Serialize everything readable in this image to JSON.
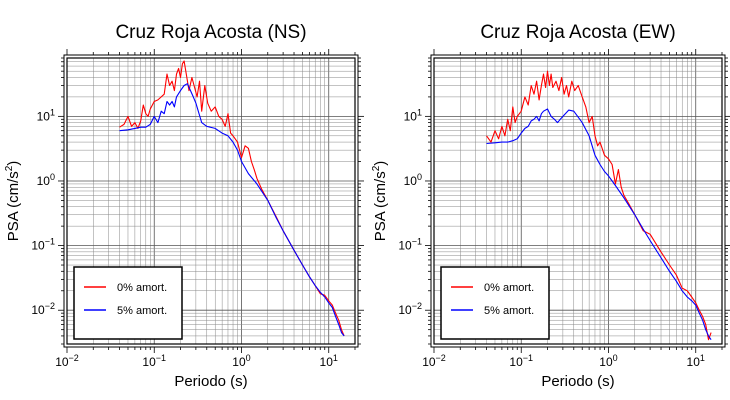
{
  "chart_data": [
    {
      "type": "line",
      "title": "Cruz Roja Acosta (NS)",
      "xlabel": "Periodo (s)",
      "ylabel": "PSA (cm/s²)",
      "xscale": "log",
      "yscale": "log",
      "xlim": [
        0.01,
        20
      ],
      "ylim": [
        0.003,
        80
      ],
      "grid": true,
      "legend_position": "bottom-left",
      "x_ticks": [
        {
          "value": 0.01,
          "base": "10",
          "exp": "−2"
        },
        {
          "value": 0.1,
          "base": "10",
          "exp": "−1"
        },
        {
          "value": 1,
          "base": "10",
          "exp": "0"
        },
        {
          "value": 10,
          "base": "10",
          "exp": "1"
        }
      ],
      "y_ticks": [
        {
          "value": 0.01,
          "base": "10",
          "exp": "−2"
        },
        {
          "value": 0.1,
          "base": "10",
          "exp": "−1"
        },
        {
          "value": 1,
          "base": "10",
          "exp": "0"
        },
        {
          "value": 10,
          "base": "10",
          "exp": "1"
        }
      ],
      "series": [
        {
          "name": "0% amort.",
          "color": "#ff0000",
          "x": [
            0.04,
            0.045,
            0.05,
            0.055,
            0.06,
            0.065,
            0.07,
            0.075,
            0.08,
            0.085,
            0.09,
            0.1,
            0.11,
            0.12,
            0.13,
            0.14,
            0.15,
            0.16,
            0.17,
            0.18,
            0.19,
            0.2,
            0.21,
            0.22,
            0.23,
            0.25,
            0.27,
            0.29,
            0.31,
            0.33,
            0.35,
            0.38,
            0.41,
            0.45,
            0.5,
            0.55,
            0.6,
            0.65,
            0.7,
            0.75,
            0.8,
            0.9,
            1.0,
            1.1,
            1.2,
            1.3,
            1.4,
            1.5,
            1.7,
            2.0,
            2.5,
            3.0,
            4.0,
            5.0,
            6.0,
            7.0,
            8.0,
            9.0,
            10.0,
            11.0,
            12.0,
            13.0,
            14.0,
            15.0
          ],
          "y": [
            6.8,
            7.5,
            10,
            7,
            8,
            6.5,
            8.5,
            15,
            11,
            10,
            13,
            17,
            18,
            20,
            22,
            45,
            30,
            35,
            25,
            45,
            55,
            40,
            65,
            72,
            50,
            25,
            40,
            28,
            20,
            35,
            12,
            30,
            16,
            12,
            14,
            10,
            9,
            7,
            11,
            5.5,
            5,
            4,
            2.3,
            3.5,
            3.2,
            2.0,
            1.5,
            1.1,
            0.75,
            0.5,
            0.28,
            0.17,
            0.085,
            0.05,
            0.033,
            0.024,
            0.018,
            0.017,
            0.014,
            0.012,
            0.009,
            0.007,
            0.005,
            0.004
          ]
        },
        {
          "name": "5% amort.",
          "color": "#0000ff",
          "x": [
            0.04,
            0.05,
            0.06,
            0.07,
            0.08,
            0.09,
            0.1,
            0.11,
            0.12,
            0.13,
            0.14,
            0.15,
            0.16,
            0.17,
            0.18,
            0.2,
            0.22,
            0.24,
            0.26,
            0.28,
            0.3,
            0.35,
            0.4,
            0.5,
            0.6,
            0.7,
            0.8,
            0.9,
            1.0,
            1.2,
            1.5,
            2.0,
            2.5,
            3.0,
            4.0,
            5.0,
            6.0,
            7.0,
            8.0,
            9.0,
            10.0,
            11.0,
            12.0,
            13.0,
            14.0,
            15.0
          ],
          "y": [
            6.0,
            6.2,
            6.5,
            6.8,
            6.8,
            7.5,
            10,
            8,
            12,
            11,
            17,
            15,
            17,
            14,
            20,
            25,
            30,
            32,
            25,
            20,
            16,
            8,
            7,
            6.5,
            5.5,
            5,
            4,
            3,
            2,
            1.3,
            0.9,
            0.5,
            0.27,
            0.17,
            0.085,
            0.05,
            0.033,
            0.024,
            0.019,
            0.016,
            0.013,
            0.011,
            0.008,
            0.006,
            0.0045,
            0.004
          ]
        }
      ]
    },
    {
      "type": "line",
      "title": "Cruz Roja Acosta (EW)",
      "xlabel": "Periodo (s)",
      "ylabel": "PSA (cm/s²)",
      "xscale": "log",
      "yscale": "log",
      "xlim": [
        0.01,
        20
      ],
      "ylim": [
        0.003,
        80
      ],
      "grid": true,
      "legend_position": "bottom-left",
      "x_ticks": [
        {
          "value": 0.01,
          "base": "10",
          "exp": "−2"
        },
        {
          "value": 0.1,
          "base": "10",
          "exp": "−1"
        },
        {
          "value": 1,
          "base": "10",
          "exp": "0"
        },
        {
          "value": 10,
          "base": "10",
          "exp": "1"
        }
      ],
      "y_ticks": [
        {
          "value": 0.01,
          "base": "10",
          "exp": "−2"
        },
        {
          "value": 0.1,
          "base": "10",
          "exp": "−1"
        },
        {
          "value": 1,
          "base": "10",
          "exp": "0"
        },
        {
          "value": 10,
          "base": "10",
          "exp": "1"
        }
      ],
      "series": [
        {
          "name": "0% amort.",
          "color": "#ff0000",
          "x": [
            0.04,
            0.045,
            0.05,
            0.055,
            0.06,
            0.065,
            0.07,
            0.075,
            0.08,
            0.085,
            0.09,
            0.1,
            0.11,
            0.12,
            0.13,
            0.14,
            0.15,
            0.16,
            0.17,
            0.18,
            0.19,
            0.2,
            0.21,
            0.22,
            0.23,
            0.25,
            0.27,
            0.29,
            0.31,
            0.33,
            0.35,
            0.38,
            0.41,
            0.45,
            0.5,
            0.55,
            0.6,
            0.65,
            0.7,
            0.75,
            0.8,
            0.9,
            1.0,
            1.1,
            1.2,
            1.3,
            1.4,
            1.5,
            1.7,
            2.0,
            2.5,
            3.0,
            4.0,
            5.0,
            6.0,
            7.0,
            8.0,
            9.0,
            10.0,
            11.0,
            12.0,
            13.0,
            14.0,
            15.0
          ],
          "y": [
            5.0,
            4.0,
            6.0,
            4.5,
            7.0,
            5.0,
            9.0,
            6.0,
            14,
            8,
            10,
            12,
            20,
            15,
            30,
            22,
            35,
            18,
            30,
            45,
            28,
            50,
            30,
            45,
            28,
            35,
            25,
            40,
            22,
            30,
            20,
            35,
            25,
            30,
            20,
            14,
            8,
            10,
            5,
            3.5,
            4,
            2.5,
            2.2,
            1.8,
            0.9,
            1.5,
            0.8,
            0.6,
            0.45,
            0.3,
            0.17,
            0.15,
            0.08,
            0.05,
            0.035,
            0.022,
            0.02,
            0.016,
            0.013,
            0.01,
            0.008,
            0.006,
            0.0035,
            0.0045
          ]
        },
        {
          "name": "5% amort.",
          "color": "#0000ff",
          "x": [
            0.04,
            0.05,
            0.06,
            0.07,
            0.08,
            0.09,
            0.1,
            0.11,
            0.12,
            0.13,
            0.14,
            0.15,
            0.16,
            0.17,
            0.18,
            0.2,
            0.22,
            0.24,
            0.26,
            0.28,
            0.3,
            0.35,
            0.4,
            0.5,
            0.6,
            0.7,
            0.8,
            0.9,
            1.0,
            1.2,
            1.5,
            2.0,
            2.5,
            3.0,
            4.0,
            5.0,
            6.0,
            7.0,
            8.0,
            9.0,
            10.0,
            11.0,
            12.0,
            13.0,
            14.0,
            15.0
          ],
          "y": [
            3.8,
            3.9,
            4.0,
            4.0,
            4.2,
            4.5,
            5.5,
            6.5,
            7,
            8.5,
            9,
            10,
            8.5,
            11,
            12,
            13,
            10,
            9,
            8,
            9,
            10,
            12.5,
            12,
            8,
            5,
            2.5,
            1.8,
            1.4,
            1.2,
            0.85,
            0.55,
            0.3,
            0.18,
            0.12,
            0.065,
            0.04,
            0.028,
            0.02,
            0.016,
            0.014,
            0.012,
            0.009,
            0.007,
            0.005,
            0.004,
            0.0035
          ]
        }
      ]
    }
  ]
}
